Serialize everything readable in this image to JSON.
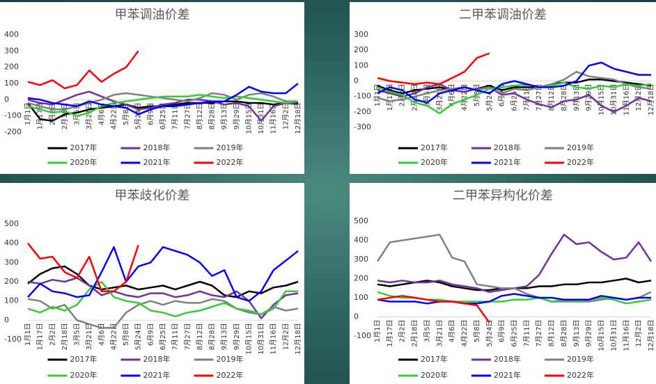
{
  "chart_data": [
    {
      "type": "line",
      "title": "甲苯调油价差",
      "categories": [
        "1月1日",
        "1月17日",
        "2月2日",
        "2月18日",
        "3月5日",
        "3月21日",
        "4月6日",
        "4月22日",
        "5月8日",
        "5月24日",
        "6月9日",
        "6月25日",
        "7月11日",
        "7月27日",
        "8月12日",
        "8月28日",
        "9月13日",
        "9月29日",
        "10月15日",
        "10月31日",
        "11月16日",
        "12月2日",
        "12月18日"
      ],
      "ylim": [
        -200,
        400
      ],
      "yticks": [
        -200,
        -100,
        0,
        100,
        200,
        300,
        400
      ],
      "series": [
        {
          "name": "2017年",
          "color": "#000000",
          "values": [
            -20,
            -120,
            -130,
            -90,
            -80,
            -60,
            -50,
            -40,
            -30,
            -50,
            -40,
            -40,
            -30,
            -20,
            -20,
            -20,
            -10,
            -10,
            -20,
            -20,
            -30,
            -20,
            -20
          ]
        },
        {
          "name": "2018年",
          "color": "#7030a0",
          "values": [
            0,
            -20,
            -30,
            0,
            30,
            50,
            20,
            -10,
            -30,
            -60,
            -50,
            -30,
            -20,
            0,
            0,
            -10,
            -30,
            -20,
            -40,
            -130,
            -40,
            -20,
            -30
          ]
        },
        {
          "name": "2019年",
          "color": "#808080",
          "values": [
            -20,
            -40,
            -60,
            -60,
            -40,
            -20,
            0,
            30,
            40,
            30,
            20,
            10,
            0,
            -10,
            10,
            40,
            30,
            0,
            30,
            40,
            20,
            -10,
            -10
          ]
        },
        {
          "name": "2020年",
          "color": "#33cc33",
          "values": [
            -40,
            -60,
            -80,
            -70,
            -100,
            -80,
            -40,
            -20,
            -10,
            0,
            10,
            20,
            20,
            20,
            30,
            20,
            10,
            20,
            10,
            0,
            -10,
            -20,
            -10
          ]
        },
        {
          "name": "2021年",
          "color": "#0000ff",
          "values": [
            10,
            0,
            -20,
            -30,
            -40,
            -10,
            -30,
            -40,
            -50,
            -90,
            -60,
            -40,
            -40,
            -30,
            -20,
            -10,
            -10,
            30,
            80,
            50,
            40,
            40,
            100
          ]
        },
        {
          "name": "2022年",
          "color": "#ff0000",
          "values": [
            110,
            90,
            120,
            70,
            90,
            180,
            110,
            160,
            200,
            300,
            null,
            null,
            null,
            null,
            null,
            null,
            null,
            null,
            null,
            null,
            null,
            null,
            null
          ]
        }
      ]
    },
    {
      "type": "line",
      "title": "二甲苯调油价差",
      "categories": [
        "1月1日",
        "1月17日",
        "2月2日",
        "2月18日",
        "3月5日",
        "3月21日",
        "4月6日",
        "4月22日",
        "5月8日",
        "5月24日",
        "6月9日",
        "6月25日",
        "7月11日",
        "7月27日",
        "8月12日",
        "8月28日",
        "9月13日",
        "9月29日",
        "10月15日",
        "10月31日",
        "11月16日",
        "12月2日",
        "12月18日"
      ],
      "ylim": [
        -300,
        300
      ],
      "yticks": [
        -300,
        -200,
        -100,
        0,
        100,
        200,
        300
      ],
      "series": [
        {
          "name": "2017年",
          "color": "#000000",
          "values": [
            -30,
            -60,
            -80,
            -60,
            -50,
            -40,
            -60,
            -70,
            -50,
            -30,
            -60,
            -40,
            -40,
            -40,
            -20,
            -10,
            -10,
            10,
            10,
            0,
            -10,
            -20,
            -30
          ]
        },
        {
          "name": "2018年",
          "color": "#7030a0",
          "values": [
            -60,
            -80,
            -100,
            -80,
            -40,
            -20,
            -60,
            -70,
            -50,
            -40,
            -90,
            -80,
            -120,
            -150,
            -170,
            -130,
            -120,
            -90,
            -160,
            -200,
            -160,
            -110,
            -130
          ]
        },
        {
          "name": "2019年",
          "color": "#808080",
          "values": [
            -110,
            -130,
            -120,
            -100,
            -80,
            -60,
            -50,
            -40,
            -60,
            -40,
            -80,
            -50,
            -60,
            -40,
            -20,
            10,
            60,
            30,
            20,
            10,
            -20,
            -40,
            -50
          ]
        },
        {
          "name": "2020年",
          "color": "#33cc33",
          "values": [
            -40,
            -70,
            -90,
            -140,
            -160,
            -210,
            -150,
            -120,
            -90,
            -50,
            -40,
            -30,
            -20,
            -40,
            -30,
            -10,
            -40,
            -50,
            -30,
            -40,
            -20,
            -30,
            -20
          ]
        },
        {
          "name": "2021年",
          "color": "#0000ff",
          "values": [
            -80,
            -40,
            -60,
            -120,
            -140,
            -80,
            -60,
            -40,
            -60,
            -80,
            -20,
            0,
            -20,
            -40,
            -40,
            -30,
            0,
            100,
            120,
            80,
            60,
            40,
            40
          ]
        },
        {
          "name": "2022年",
          "color": "#ff0000",
          "values": [
            20,
            0,
            -10,
            -20,
            -10,
            -20,
            20,
            60,
            150,
            180,
            null,
            null,
            null,
            null,
            null,
            null,
            null,
            null,
            null,
            null,
            null,
            null,
            null
          ]
        }
      ]
    },
    {
      "type": "line",
      "title": "甲苯歧化价差",
      "categories": [
        "1月1日",
        "1月17日",
        "2月2日",
        "2月18日",
        "3月5日",
        "3月21日",
        "4月6日",
        "4月22日",
        "5月8日",
        "5月24日",
        "6月9日",
        "6月25日",
        "7月11日",
        "7月27日",
        "8月12日",
        "8月28日",
        "9月13日",
        "9月29日",
        "10月15日",
        "10月31日",
        "11月16日",
        "12月2日",
        "12月18日"
      ],
      "ylim": [
        -100,
        500
      ],
      "yticks": [
        -100,
        0,
        100,
        200,
        300,
        400,
        500
      ],
      "series": [
        {
          "name": "2017年",
          "color": "#000000",
          "values": [
            190,
            240,
            270,
            280,
            240,
            180,
            160,
            170,
            180,
            160,
            170,
            180,
            160,
            180,
            200,
            180,
            130,
            120,
            150,
            140,
            170,
            180,
            200
          ]
        },
        {
          "name": "2018年",
          "color": "#7030a0",
          "values": [
            200,
            190,
            210,
            200,
            220,
            180,
            130,
            150,
            130,
            120,
            140,
            140,
            120,
            130,
            150,
            130,
            120,
            150,
            100,
            10,
            80,
            130,
            140
          ]
        },
        {
          "name": "2019年",
          "color": "#808080",
          "values": [
            110,
            100,
            60,
            80,
            0,
            -20,
            -40,
            -40,
            40,
            80,
            100,
            80,
            100,
            90,
            90,
            110,
            100,
            60,
            40,
            30,
            70,
            50,
            60
          ]
        },
        {
          "name": "2020年",
          "color": "#33cc33",
          "values": [
            60,
            40,
            70,
            50,
            80,
            160,
            200,
            120,
            100,
            90,
            50,
            40,
            20,
            40,
            50,
            70,
            90,
            60,
            50,
            30,
            60,
            150,
            150
          ]
        },
        {
          "name": "2021年",
          "color": "#0000ff",
          "values": [
            120,
            190,
            150,
            140,
            120,
            130,
            250,
            380,
            200,
            280,
            300,
            380,
            360,
            340,
            300,
            230,
            260,
            120,
            100,
            150,
            260,
            310,
            360
          ]
        },
        {
          "name": "2022年",
          "color": "#ff0000",
          "values": [
            400,
            320,
            330,
            250,
            220,
            330,
            150,
            150,
            200,
            390,
            null,
            null,
            null,
            null,
            null,
            null,
            null,
            null,
            null,
            null,
            null,
            null,
            null
          ]
        }
      ]
    },
    {
      "type": "line",
      "title": "二甲苯异构化价差",
      "categories": [
        "1月1日",
        "1月17日",
        "2月2日",
        "2月18日",
        "3月5日",
        "3月21日",
        "4月6日",
        "4月22日",
        "5月8日",
        "5月24日",
        "6月9日",
        "6月25日",
        "7月11日",
        "7月27日",
        "8月12日",
        "8月28日",
        "9月13日",
        "9月29日",
        "10月15日",
        "10月31日",
        "11月16日",
        "12月2日",
        "12月18日"
      ],
      "ylim": [
        -100,
        500
      ],
      "yticks": [
        -100,
        0,
        100,
        200,
        300,
        400,
        500
      ],
      "series": [
        {
          "name": "2017年",
          "color": "#000000",
          "values": [
            170,
            160,
            170,
            180,
            190,
            180,
            160,
            150,
            140,
            140,
            150,
            150,
            150,
            160,
            160,
            170,
            170,
            180,
            180,
            190,
            200,
            180,
            190
          ]
        },
        {
          "name": "2018年",
          "color": "#7030a0",
          "values": [
            190,
            180,
            190,
            180,
            180,
            190,
            170,
            160,
            150,
            130,
            140,
            150,
            160,
            220,
            330,
            430,
            380,
            390,
            340,
            300,
            310,
            390,
            290
          ]
        },
        {
          "name": "2019年",
          "color": "#808080",
          "values": [
            290,
            390,
            400,
            410,
            420,
            430,
            310,
            290,
            170,
            160,
            150,
            150,
            120,
            100,
            80,
            80,
            80,
            80,
            90,
            100,
            90,
            100,
            130
          ]
        },
        {
          "name": "2020年",
          "color": "#33cc33",
          "values": [
            130,
            110,
            100,
            100,
            90,
            90,
            80,
            80,
            80,
            80,
            80,
            90,
            90,
            100,
            80,
            90,
            80,
            90,
            100,
            90,
            70,
            80,
            90
          ]
        },
        {
          "name": "2021年",
          "color": "#0000ff",
          "values": [
            90,
            80,
            80,
            80,
            70,
            80,
            80,
            70,
            70,
            80,
            110,
            120,
            110,
            100,
            100,
            90,
            90,
            90,
            110,
            100,
            90,
            100,
            100
          ]
        },
        {
          "name": "2022年",
          "color": "#ff0000",
          "values": [
            90,
            100,
            110,
            100,
            90,
            80,
            80,
            70,
            60,
            -30,
            null,
            null,
            null,
            null,
            null,
            null,
            null,
            null,
            null,
            null,
            null,
            null,
            null
          ]
        }
      ]
    }
  ]
}
